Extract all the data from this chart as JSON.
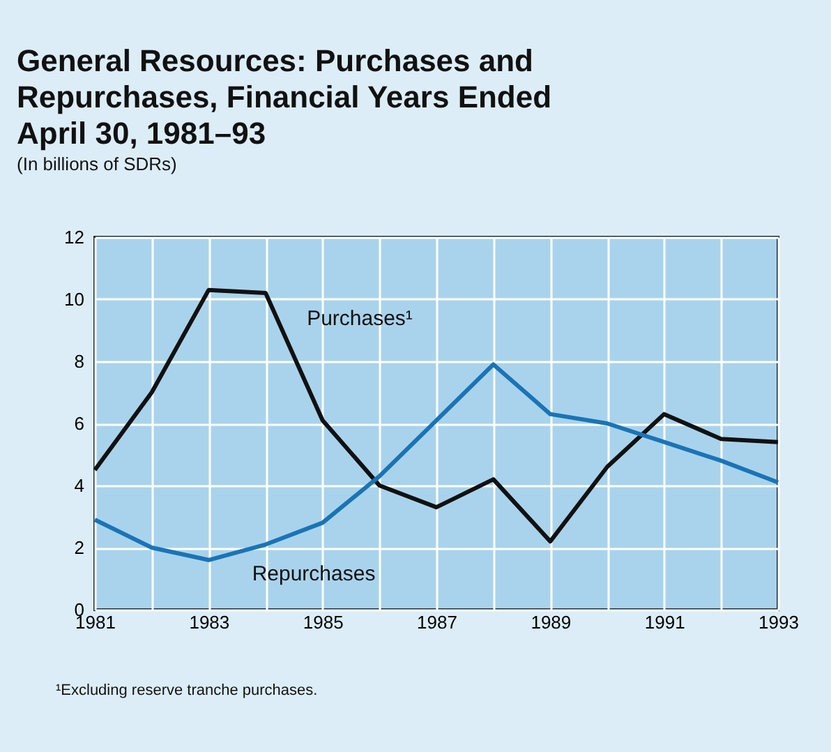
{
  "chart_data": {
    "type": "line",
    "title": "General Resources:  Purchases and Repurchases, Financial Years Ended April 30, 1981–93",
    "subtitle": "(In billions of SDRs)",
    "x": [
      1981,
      1982,
      1983,
      1984,
      1985,
      1986,
      1987,
      1988,
      1989,
      1990,
      1991,
      1992,
      1993
    ],
    "series": [
      {
        "name": "Purchases¹",
        "color": "#111111",
        "values": [
          4.5,
          7.0,
          10.3,
          10.2,
          6.1,
          4.0,
          3.3,
          4.2,
          2.2,
          4.6,
          6.3,
          5.5,
          5.4
        ]
      },
      {
        "name": "Repurchases",
        "color": "#1a74b6",
        "values": [
          2.9,
          2.0,
          1.6,
          2.1,
          2.8,
          4.3,
          6.1,
          7.9,
          6.3,
          6.0,
          5.4,
          4.8,
          4.1
        ]
      }
    ],
    "xlim": [
      1981,
      1993
    ],
    "xticks": [
      1981,
      {
        "value": 1982,
        "label": null
      },
      1983,
      {
        "value": 1984,
        "label": null
      },
      1985,
      {
        "value": 1986,
        "label": null
      },
      1987,
      {
        "value": 1988,
        "label": null
      },
      1989,
      {
        "value": 1990,
        "label": null
      },
      1991,
      {
        "value": 1992,
        "label": null
      },
      1993
    ],
    "ylim": [
      0,
      12
    ],
    "yticks": [
      0,
      2,
      4,
      6,
      8,
      10,
      12
    ],
    "grid": true,
    "line_style": "solid",
    "marker": "none",
    "annotations": [
      "¹Excluding reserve tranche purchases."
    ]
  }
}
